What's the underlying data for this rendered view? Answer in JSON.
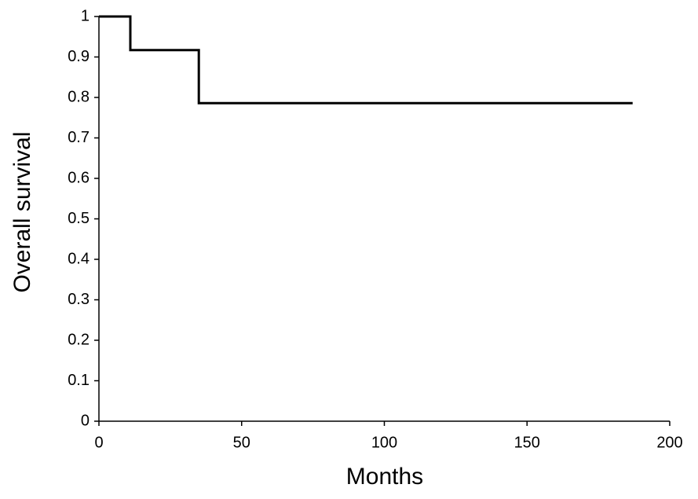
{
  "chart_data": {
    "type": "line",
    "x_label": "Months",
    "y_label": "Overall survival",
    "series": [
      {
        "color": "#000000",
        "x": [
          0,
          11,
          11,
          35,
          35,
          187
        ],
        "values": [
          1,
          1,
          0.917,
          0.917,
          0.786,
          0.786
        ]
      }
    ],
    "xlim": [
      0,
      200
    ],
    "xticks": [
      0,
      50,
      100,
      150,
      200
    ],
    "ylim": [
      0,
      1
    ],
    "yticks": [
      0,
      0.1,
      0.2,
      0.3,
      0.4,
      0.5,
      0.6,
      0.7,
      0.8,
      0.9,
      1
    ],
    "grid": false
  }
}
